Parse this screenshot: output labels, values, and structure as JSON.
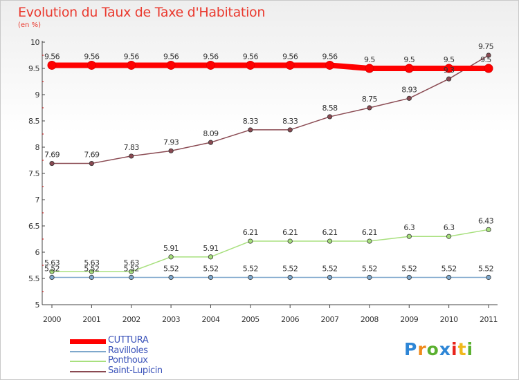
{
  "header": {
    "title": "Evolution du Taux de Taxe d'Habitation",
    "subtitle": "(en %)"
  },
  "logo": {
    "text": "Proxiti",
    "letter_colors": [
      "#2e86d6",
      "#f08a1c",
      "#5bb030",
      "#2e86d6",
      "#e8231b",
      "#f0b81c",
      "#5bb030"
    ]
  },
  "chart_data": {
    "type": "line",
    "title": "Evolution du Taux de Taxe d'Habitation",
    "subtitle": "(en %)",
    "xlabel": "",
    "ylabel": "",
    "x": [
      "2000",
      "2001",
      "2002",
      "2003",
      "2004",
      "2005",
      "2006",
      "2007",
      "2008",
      "2009",
      "2010",
      "2011"
    ],
    "ylim": [
      5,
      10
    ],
    "yticks": [
      "5",
      "5.5",
      "6",
      "6.5",
      "7",
      "7.5",
      "8",
      "8.5",
      "9",
      "9.5",
      "10"
    ],
    "grid": false,
    "legend_position": "bottom-left",
    "series": [
      {
        "name": "CUTTURA",
        "color": "#ff0000",
        "values": [
          9.56,
          9.56,
          9.56,
          9.56,
          9.56,
          9.56,
          9.56,
          9.56,
          9.5,
          9.5,
          9.5,
          9.5
        ],
        "labels": [
          "9.56",
          "9.56",
          "9.56",
          "9.56",
          "9.56",
          "9.56",
          "9.56",
          "9.56",
          "9.5",
          "9.5",
          "9.5",
          "9.5"
        ]
      },
      {
        "name": "Ravilloles",
        "color": "#7fa8cc",
        "values": [
          5.52,
          5.52,
          5.52,
          5.52,
          5.52,
          5.52,
          5.52,
          5.52,
          5.52,
          5.52,
          5.52,
          5.52
        ],
        "labels": [
          "5.52",
          "5.52",
          "5.52",
          "5.52",
          "5.52",
          "5.52",
          "5.52",
          "5.52",
          "5.52",
          "5.52",
          "5.52",
          "5.52"
        ]
      },
      {
        "name": "Ponthoux",
        "color": "#a8e07e",
        "values": [
          5.63,
          5.63,
          5.63,
          5.91,
          5.91,
          6.21,
          6.21,
          6.21,
          6.21,
          6.3,
          6.3,
          6.43
        ],
        "labels": [
          "5.63",
          "5.63",
          "5.63",
          "5.91",
          "5.91",
          "6.21",
          "6.21",
          "6.21",
          "6.21",
          "6.3",
          "6.3",
          "6.43"
        ]
      },
      {
        "name": "Saint-Lupicin",
        "color": "#8a4a52",
        "values": [
          7.69,
          7.69,
          7.83,
          7.93,
          8.09,
          8.33,
          8.33,
          8.58,
          8.75,
          8.93,
          9.3,
          9.75
        ],
        "labels": [
          "7.69",
          "7.69",
          "7.83",
          "7.93",
          "8.09",
          "8.33",
          "8.33",
          "8.58",
          "8.75",
          "8.93",
          "9.3",
          "9.75"
        ]
      }
    ]
  }
}
